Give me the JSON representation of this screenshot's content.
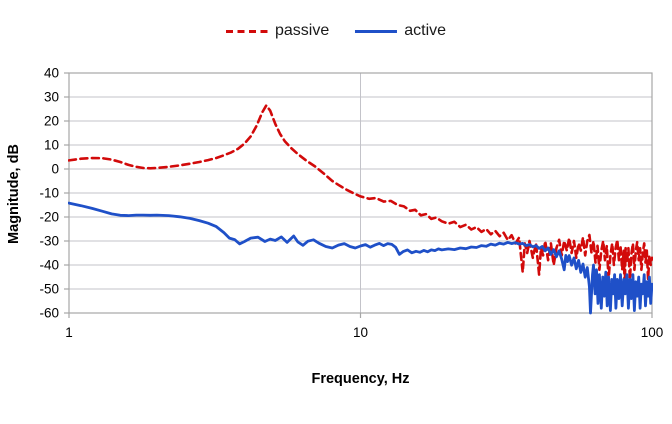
{
  "legend": {
    "items": [
      {
        "label": "passive",
        "color": "#d20a0a",
        "style": "dashed"
      },
      {
        "label": "active",
        "color": "#1f50c8",
        "style": "solid"
      }
    ]
  },
  "chart_data": {
    "type": "line",
    "title": "",
    "xlabel": "Frequency, Hz",
    "ylabel": "Magnitude, dB",
    "x_scale": "log",
    "xlim": [
      1,
      100
    ],
    "ylim": [
      -60,
      40
    ],
    "x_ticks": [
      1,
      10,
      100
    ],
    "y_ticks": [
      40,
      30,
      20,
      10,
      0,
      -10,
      -20,
      -30,
      -40,
      -50,
      -60
    ],
    "grid": true,
    "legend_position": "top-center",
    "grid_color": "#c3c3c9",
    "border_color": "#a6a6a6",
    "series": [
      {
        "name": "passive",
        "color": "#d20a0a",
        "dash": "7 4.5",
        "width": 2.6,
        "points": [
          [
            1,
            3.6
          ],
          [
            1.1,
            4.3
          ],
          [
            1.2,
            4.6
          ],
          [
            1.3,
            4.5
          ],
          [
            1.4,
            3.9
          ],
          [
            1.5,
            2.9
          ],
          [
            1.6,
            1.7
          ],
          [
            1.7,
            0.9
          ],
          [
            1.8,
            0.4
          ],
          [
            1.9,
            0.3
          ],
          [
            2,
            0.4
          ],
          [
            2.2,
            0.9
          ],
          [
            2.4,
            1.5
          ],
          [
            2.6,
            2.2
          ],
          [
            2.8,
            2.9
          ],
          [
            3,
            3.7
          ],
          [
            3.2,
            4.6
          ],
          [
            3.4,
            5.7
          ],
          [
            3.6,
            6.9
          ],
          [
            3.8,
            8.4
          ],
          [
            4,
            10.6
          ],
          [
            4.2,
            13.6
          ],
          [
            4.4,
            18
          ],
          [
            4.6,
            23.6
          ],
          [
            4.75,
            26.5
          ],
          [
            4.9,
            24.3
          ],
          [
            5.1,
            18.8
          ],
          [
            5.3,
            14.6
          ],
          [
            5.5,
            11.6
          ],
          [
            5.8,
            8.6
          ],
          [
            6.1,
            6.2
          ],
          [
            6.5,
            3.6
          ],
          [
            7,
            1
          ],
          [
            7.5,
            -2
          ],
          [
            8,
            -5
          ],
          [
            8.5,
            -7
          ],
          [
            9,
            -8.8
          ],
          [
            9.5,
            -10.2
          ],
          [
            10,
            -11.4
          ],
          [
            10.7,
            -12.4
          ],
          [
            11.3,
            -12.1
          ],
          [
            12,
            -13.6
          ],
          [
            12.7,
            -13.3
          ],
          [
            13.4,
            -15
          ],
          [
            14.1,
            -15.6
          ],
          [
            14.8,
            -17.4
          ],
          [
            15.4,
            -17
          ],
          [
            16.1,
            -19.3
          ],
          [
            16.8,
            -18.8
          ],
          [
            17.5,
            -20.8
          ],
          [
            18.2,
            -20.2
          ],
          [
            19,
            -21.8
          ],
          [
            20,
            -22.8
          ],
          [
            21,
            -22
          ],
          [
            22,
            -24.2
          ],
          [
            23,
            -23.2
          ],
          [
            24,
            -25.2
          ],
          [
            25,
            -24.2
          ],
          [
            26,
            -26.2
          ],
          [
            27,
            -25
          ],
          [
            28,
            -27.2
          ],
          [
            29,
            -25.8
          ],
          [
            30,
            -28
          ],
          [
            31,
            -26.6
          ],
          [
            32,
            -29.6
          ],
          [
            33,
            -27.6
          ],
          [
            34,
            -31
          ],
          [
            35,
            -28.6
          ],
          [
            36,
            -43
          ],
          [
            36.6,
            -31
          ],
          [
            37.3,
            -35
          ],
          [
            38,
            -30
          ],
          [
            39,
            -37
          ],
          [
            40,
            -31
          ],
          [
            41,
            -44
          ],
          [
            41.6,
            -33
          ],
          [
            42.3,
            -36
          ],
          [
            43,
            -30
          ],
          [
            44,
            -38
          ],
          [
            45,
            -31
          ],
          [
            46,
            -40
          ],
          [
            47,
            -33
          ],
          [
            48,
            -29.5
          ],
          [
            49,
            -36
          ],
          [
            50,
            -30
          ],
          [
            51,
            -34
          ],
          [
            52,
            -28.8
          ],
          [
            53,
            -35
          ],
          [
            54,
            -30
          ],
          [
            55,
            -37
          ],
          [
            56,
            -31
          ],
          [
            57,
            -34
          ],
          [
            58,
            -28.5
          ],
          [
            59,
            -36
          ],
          [
            60,
            -30
          ],
          [
            61,
            -27.5
          ],
          [
            62,
            -35
          ],
          [
            63,
            -30
          ],
          [
            64,
            -39
          ],
          [
            65,
            -32
          ],
          [
            66,
            -42
          ],
          [
            67,
            -34
          ],
          [
            68,
            -30
          ],
          [
            69,
            -38
          ],
          [
            70,
            -32
          ],
          [
            71,
            -46
          ],
          [
            72,
            -36
          ],
          [
            73,
            -31
          ],
          [
            74,
            -40
          ],
          [
            75,
            -33
          ],
          [
            76,
            -29.5
          ],
          [
            77,
            -38
          ],
          [
            78,
            -32
          ],
          [
            79,
            -42
          ],
          [
            80,
            -34
          ],
          [
            80.6,
            -50
          ],
          [
            81.2,
            -33
          ],
          [
            82,
            -39
          ],
          [
            83,
            -33
          ],
          [
            84,
            -46
          ],
          [
            85,
            -35.5
          ],
          [
            86,
            -31
          ],
          [
            87,
            -42
          ],
          [
            88,
            -34
          ],
          [
            89,
            -30.5
          ],
          [
            90,
            -38
          ],
          [
            91,
            -33
          ],
          [
            92,
            -42
          ],
          [
            93,
            -35
          ],
          [
            94,
            -31
          ],
          [
            95,
            -39
          ],
          [
            96,
            -34
          ],
          [
            97,
            -46
          ],
          [
            98,
            -36
          ],
          [
            99,
            -40
          ],
          [
            100,
            -37
          ]
        ]
      },
      {
        "name": "active",
        "color": "#1f50c8",
        "dash": null,
        "width": 2.8,
        "points": [
          [
            1,
            -14.2
          ],
          [
            1.1,
            -15.3
          ],
          [
            1.2,
            -16.4
          ],
          [
            1.3,
            -17.6
          ],
          [
            1.4,
            -18.7
          ],
          [
            1.5,
            -19.3
          ],
          [
            1.6,
            -19.4
          ],
          [
            1.7,
            -19.2
          ],
          [
            1.8,
            -19.2
          ],
          [
            1.9,
            -19.3
          ],
          [
            2,
            -19.2
          ],
          [
            2.2,
            -19.4
          ],
          [
            2.4,
            -19.9
          ],
          [
            2.6,
            -20.6
          ],
          [
            2.8,
            -21.5
          ],
          [
            3,
            -22.6
          ],
          [
            3.2,
            -24
          ],
          [
            3.4,
            -26.5
          ],
          [
            3.55,
            -28.8
          ],
          [
            3.7,
            -29.4
          ],
          [
            3.85,
            -31.2
          ],
          [
            4,
            -30.2
          ],
          [
            4.2,
            -28.8
          ],
          [
            4.45,
            -28.4
          ],
          [
            4.7,
            -30.2
          ],
          [
            4.9,
            -29.2
          ],
          [
            5.1,
            -29.8
          ],
          [
            5.35,
            -28.3
          ],
          [
            5.6,
            -30.6
          ],
          [
            5.9,
            -27.9
          ],
          [
            6.1,
            -30.4
          ],
          [
            6.35,
            -31.8
          ],
          [
            6.6,
            -30.1
          ],
          [
            6.9,
            -29.5
          ],
          [
            7.2,
            -30.9
          ],
          [
            7.6,
            -32.3
          ],
          [
            8,
            -32.9
          ],
          [
            8.4,
            -31.7
          ],
          [
            8.8,
            -31.1
          ],
          [
            9.2,
            -32.3
          ],
          [
            9.6,
            -32.9
          ],
          [
            10,
            -32.1
          ],
          [
            10.4,
            -31.5
          ],
          [
            10.8,
            -32.6
          ],
          [
            11.2,
            -31.7
          ],
          [
            11.6,
            -31
          ],
          [
            12,
            -31.9
          ],
          [
            12.4,
            -31.1
          ],
          [
            12.8,
            -31.4
          ],
          [
            13.2,
            -32.6
          ],
          [
            13.6,
            -35.6
          ],
          [
            14,
            -34.4
          ],
          [
            14.5,
            -33.7
          ],
          [
            15,
            -34.9
          ],
          [
            15.5,
            -34.3
          ],
          [
            16,
            -34.7
          ],
          [
            16.5,
            -33.9
          ],
          [
            17,
            -34.5
          ],
          [
            17.5,
            -33.7
          ],
          [
            18,
            -34
          ],
          [
            18.5,
            -33.3
          ],
          [
            19,
            -33.7
          ],
          [
            20,
            -33.3
          ],
          [
            21,
            -33.6
          ],
          [
            22,
            -32.9
          ],
          [
            23,
            -33.2
          ],
          [
            24,
            -32.5
          ],
          [
            25,
            -32.7
          ],
          [
            26,
            -31.9
          ],
          [
            27,
            -32.2
          ],
          [
            28,
            -31.3
          ],
          [
            29,
            -31.7
          ],
          [
            30,
            -30.9
          ],
          [
            31,
            -31.3
          ],
          [
            32,
            -30.6
          ],
          [
            33,
            -31.1
          ],
          [
            34,
            -30.7
          ],
          [
            35,
            -31.3
          ],
          [
            36,
            -31
          ],
          [
            37,
            -31.9
          ],
          [
            38,
            -31.5
          ],
          [
            39,
            -32.4
          ],
          [
            40,
            -31.9
          ],
          [
            41,
            -33.1
          ],
          [
            42,
            -32.3
          ],
          [
            43,
            -34.1
          ],
          [
            44,
            -32.9
          ],
          [
            45,
            -35.6
          ],
          [
            46,
            -33.6
          ],
          [
            47,
            -36.6
          ],
          [
            48,
            -34.1
          ],
          [
            49,
            -37.6
          ],
          [
            50,
            -42
          ],
          [
            50.6,
            -36
          ],
          [
            51.3,
            -38.6
          ],
          [
            52,
            -36.1
          ],
          [
            53,
            -40.1
          ],
          [
            54,
            -37.1
          ],
          [
            55,
            -41.6
          ],
          [
            56,
            -38.1
          ],
          [
            57,
            -43.1
          ],
          [
            58,
            -39.6
          ],
          [
            59,
            -45.1
          ],
          [
            60,
            -41.1
          ],
          [
            61,
            -49
          ],
          [
            61.5,
            -60
          ],
          [
            62,
            -52
          ],
          [
            62.5,
            -44
          ],
          [
            63,
            -40
          ],
          [
            63.8,
            -52
          ],
          [
            64.5,
            -42
          ],
          [
            65.3,
            -56
          ],
          [
            66,
            -44
          ],
          [
            67,
            -58
          ],
          [
            67.8,
            -45
          ],
          [
            68.6,
            -53
          ],
          [
            69.4,
            -43
          ],
          [
            70.2,
            -57
          ],
          [
            71,
            -45
          ],
          [
            72,
            -59
          ],
          [
            72.8,
            -46
          ],
          [
            73.6,
            -52
          ],
          [
            74.4,
            -44
          ],
          [
            75.2,
            -58
          ],
          [
            76,
            -46
          ],
          [
            77,
            -54
          ],
          [
            78,
            -44
          ],
          [
            79,
            -57
          ],
          [
            80,
            -46
          ],
          [
            81,
            -52
          ],
          [
            82,
            -44
          ],
          [
            83,
            -58
          ],
          [
            84,
            -46
          ],
          [
            85,
            -54
          ],
          [
            86,
            -44
          ],
          [
            87,
            -59
          ],
          [
            88,
            -47
          ],
          [
            89,
            -53
          ],
          [
            90,
            -45
          ],
          [
            91,
            -58
          ],
          [
            92,
            -48
          ],
          [
            93,
            -52
          ],
          [
            94,
            -44
          ],
          [
            95,
            -57
          ],
          [
            96,
            -47
          ],
          [
            97,
            -53
          ],
          [
            98,
            -45
          ],
          [
            99,
            -56
          ],
          [
            100,
            -48
          ]
        ]
      }
    ]
  }
}
